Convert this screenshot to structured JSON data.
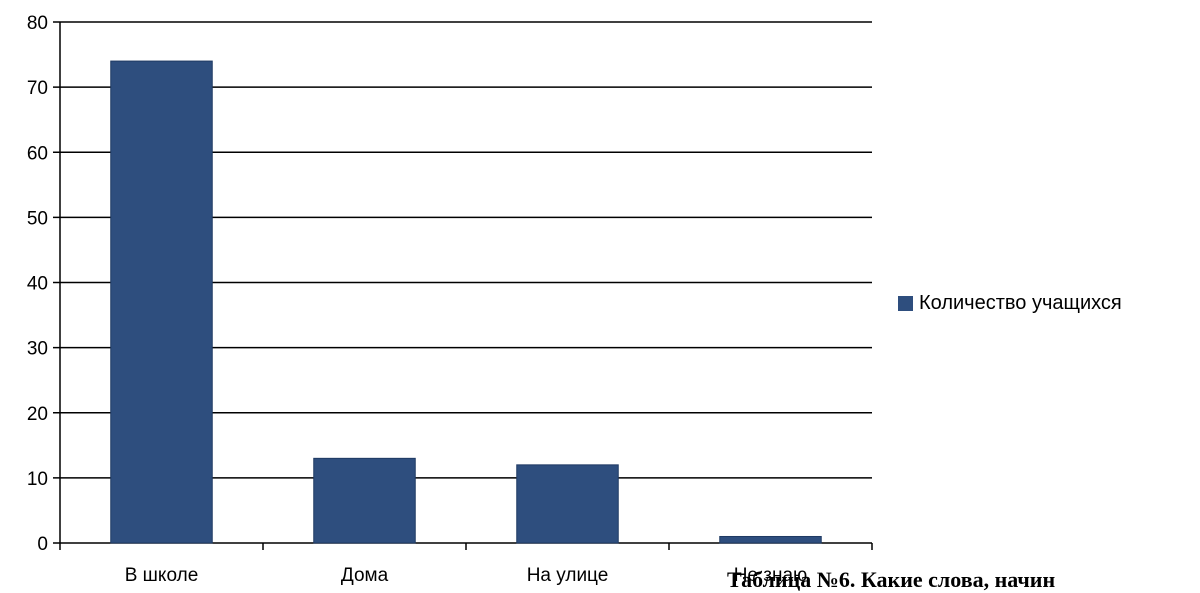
{
  "chart_data": {
    "type": "bar",
    "categories": [
      "В школе",
      "Дома",
      "На улице",
      "Не знаю"
    ],
    "series": [
      {
        "name": "Количество учащихся",
        "values": [
          74,
          13,
          12,
          1
        ]
      }
    ],
    "ylim": [
      0,
      80
    ],
    "yticks": [
      0,
      10,
      20,
      30,
      40,
      50,
      60,
      70,
      80
    ],
    "grid": true,
    "legend": "right",
    "color": "#2E4E7E"
  },
  "caption_fragment": "Таблица №6. Какие слова, начин"
}
